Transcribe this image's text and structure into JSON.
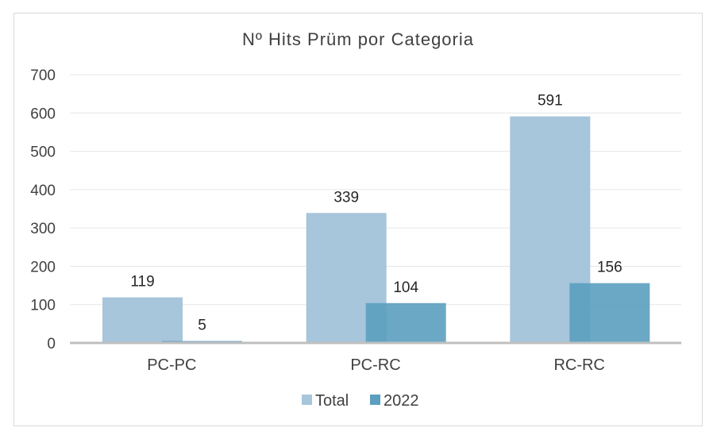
{
  "chart_data": {
    "type": "bar",
    "title": "Nº Hits Prüm por Categoria",
    "categories": [
      "PC-PC",
      "PC-RC",
      "RC-RC"
    ],
    "series": [
      {
        "name": "Total",
        "values": [
          119,
          339,
          591
        ],
        "color": "#a7c5db"
      },
      {
        "name": "2022",
        "values": [
          5,
          104,
          156
        ],
        "color": "#5b9ebf"
      }
    ],
    "yticks": [
      "0",
      "100",
      "200",
      "300",
      "400",
      "500",
      "600",
      "700"
    ],
    "ylim": [
      0,
      700
    ],
    "grid": true,
    "legend": "bottom-center"
  }
}
